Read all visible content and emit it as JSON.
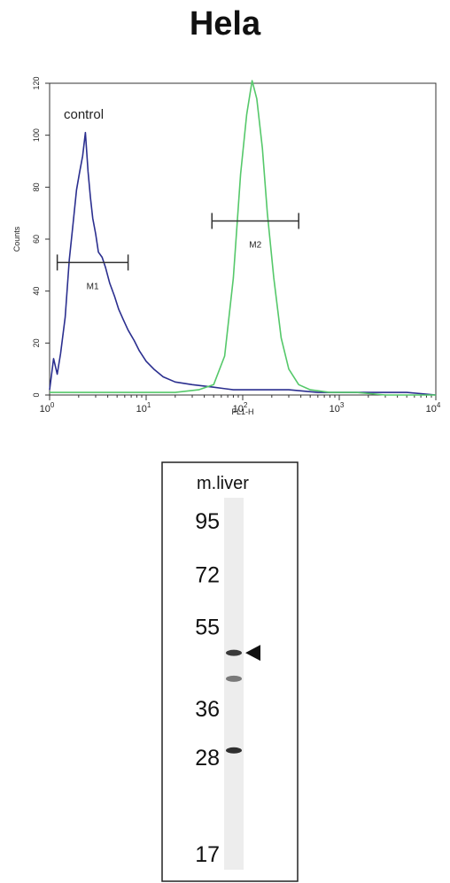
{
  "title": "Hela",
  "chart_data": [
    {
      "type": "line",
      "xlabel": "FL1-H",
      "ylabel": "Counts",
      "x_scale": "log",
      "xlim": [
        1,
        10000
      ],
      "ylim": [
        0,
        120
      ],
      "x_ticks": [
        {
          "value": 1,
          "base": "10",
          "exp": "0"
        },
        {
          "value": 10,
          "base": "10",
          "exp": "1"
        },
        {
          "value": 100,
          "base": "10",
          "exp": "2"
        },
        {
          "value": 1000,
          "base": "10",
          "exp": "3"
        },
        {
          "value": 10000,
          "base": "10",
          "exp": "4"
        }
      ],
      "y_ticks": [
        "0",
        "20",
        "40",
        "60",
        "80",
        "100",
        "120"
      ],
      "annotation": "control",
      "gates": [
        {
          "label": "M1",
          "x_start": 1.2,
          "x_end": 6.5,
          "y": 51
        },
        {
          "label": "M2",
          "x_start": 48,
          "x_end": 380,
          "y": 67
        }
      ],
      "series": [
        {
          "color": "#2b2f8f",
          "x": [
            1.0,
            1.1,
            1.2,
            1.3,
            1.45,
            1.6,
            1.75,
            1.9,
            2.05,
            2.2,
            2.35,
            2.5,
            2.65,
            2.8,
            3.0,
            3.2,
            3.5,
            3.8,
            4.2,
            4.7,
            5.2,
            5.8,
            6.5,
            7.5,
            8.5,
            10,
            12,
            15,
            20,
            30,
            50,
            80,
            150,
            300,
            600,
            1000,
            2000,
            5000,
            10000
          ],
          "y": [
            2,
            14,
            8,
            16,
            30,
            52,
            66,
            79,
            86,
            92,
            101,
            86,
            76,
            68,
            62,
            55,
            53,
            49,
            43,
            38,
            33,
            29,
            25,
            21,
            17,
            13,
            10,
            7,
            5,
            4,
            3,
            2,
            2,
            2,
            1,
            1,
            1,
            1,
            0
          ]
        },
        {
          "color": "#55c86a",
          "x": [
            1.0,
            2,
            5,
            10,
            20,
            35,
            50,
            65,
            80,
            95,
            110,
            125,
            140,
            160,
            180,
            210,
            250,
            300,
            380,
            500,
            800,
            1500,
            3000,
            10000
          ],
          "y": [
            1,
            1,
            1,
            1,
            1,
            2,
            4,
            15,
            45,
            85,
            108,
            121,
            114,
            95,
            70,
            45,
            22,
            10,
            4,
            2,
            1,
            1,
            0,
            0
          ]
        }
      ]
    },
    {
      "type": "table",
      "lane_label": "m.liver",
      "mw_markers": [
        "95",
        "72",
        "55",
        "36",
        "28",
        "17"
      ],
      "mw_values": [
        95,
        72,
        55,
        36,
        28,
        17
      ],
      "bands_kda": [
        48,
        42,
        29
      ],
      "band_intensity": [
        0.85,
        0.55,
        0.9
      ],
      "arrow_at_kda": 48
    }
  ]
}
